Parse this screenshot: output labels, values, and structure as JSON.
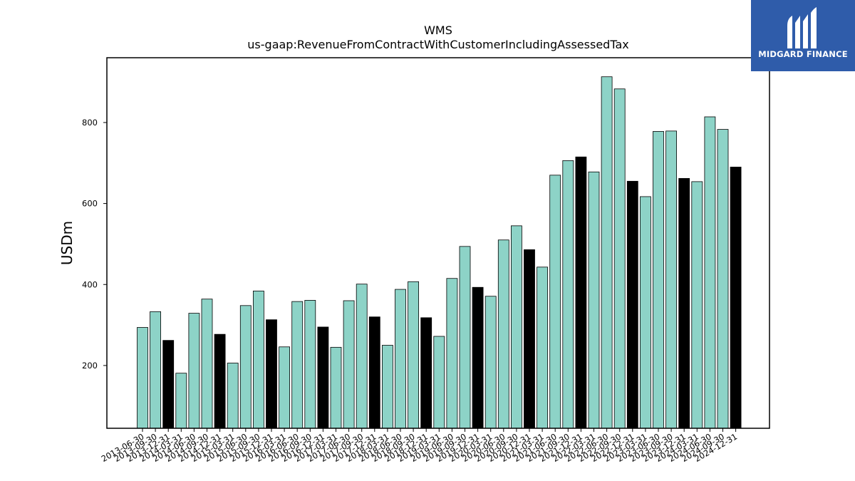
{
  "chart_data": {
    "type": "bar",
    "title": "WMS",
    "subtitle": "us-gaap:RevenueFromContractWithCustomerIncludingAssessedTax",
    "xlabel": "",
    "ylabel": "USDm",
    "ylim": [
      45,
      960
    ],
    "yticks": [
      200,
      400,
      600,
      800
    ],
    "grid": false,
    "legend": "none",
    "colors": {
      "quarter": "#8dd3c7",
      "fiscal_year_end": "#000000",
      "edge": "#000000"
    },
    "categories": [
      "2013-06-30",
      "2013-09-30",
      "2013-12-31",
      "2014-03-31",
      "2014-06-30",
      "2014-09-30",
      "2014-12-31",
      "2015-03-31",
      "2015-06-30",
      "2015-09-30",
      "2015-12-31",
      "2016-03-31",
      "2016-06-30",
      "2016-09-30",
      "2016-12-31",
      "2017-03-31",
      "2017-06-30",
      "2017-09-30",
      "2017-12-31",
      "2018-03-31",
      "2018-06-30",
      "2018-09-30",
      "2018-12-31",
      "2019-03-31",
      "2019-06-30",
      "2019-09-30",
      "2019-12-31",
      "2020-03-31",
      "2020-06-30",
      "2020-09-30",
      "2020-12-31",
      "2021-03-31",
      "2021-06-30",
      "2021-09-30",
      "2021-12-31",
      "2022-03-31",
      "2022-06-30",
      "2022-09-30",
      "2022-12-31",
      "2023-03-31",
      "2023-06-30",
      "2023-09-30",
      "2023-12-31",
      "2024-03-31",
      "2024-06-30",
      "2024-09-30",
      "2024-12-31"
    ],
    "values": [
      294,
      333,
      262,
      181,
      329,
      364,
      277,
      206,
      348,
      384,
      313,
      246,
      358,
      361,
      295,
      245,
      360,
      401,
      320,
      250,
      388,
      407,
      318,
      272,
      415,
      494,
      393,
      371,
      510,
      545,
      486,
      443,
      670,
      706,
      715,
      678,
      913,
      883,
      655,
      617,
      778,
      779,
      662,
      654,
      814,
      783,
      690
    ],
    "highlight": [
      false,
      false,
      true,
      false,
      false,
      false,
      true,
      false,
      false,
      false,
      true,
      false,
      false,
      false,
      true,
      false,
      false,
      false,
      true,
      false,
      false,
      false,
      true,
      false,
      false,
      false,
      true,
      false,
      false,
      false,
      true,
      false,
      false,
      false,
      true,
      false,
      false,
      false,
      true,
      false,
      false,
      false,
      true,
      false,
      false,
      false,
      true
    ]
  },
  "logo": {
    "text": "MIDGARD FINANCE",
    "mark": "midgard-m-logo"
  }
}
